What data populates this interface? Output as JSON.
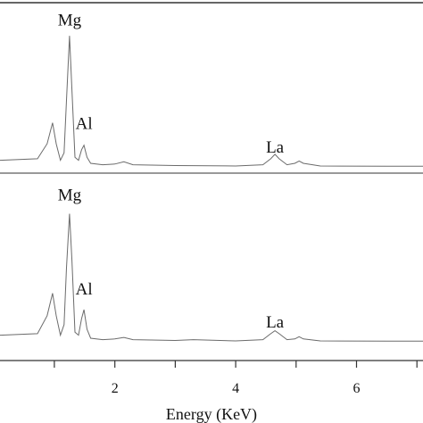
{
  "chart_data": [
    {
      "type": "line",
      "panel": "top",
      "xlabel": "Energy (KeV)",
      "xlim": [
        0.1,
        7.1
      ],
      "ylim": [
        0,
        1
      ],
      "annotations": [
        {
          "text": "Mg",
          "x": 1.25,
          "y": 0.95
        },
        {
          "text": "Al",
          "x": 1.49,
          "y": 0.26
        },
        {
          "text": "La",
          "x": 4.65,
          "y": 0.1
        }
      ],
      "series": [
        {
          "points": [
            [
              0.1,
              0.05
            ],
            [
              0.72,
              0.06
            ],
            [
              0.88,
              0.16
            ],
            [
              0.97,
              0.3
            ],
            [
              1.03,
              0.16
            ],
            [
              1.1,
              0.05
            ],
            [
              1.16,
              0.1
            ],
            [
              1.2,
              0.45
            ],
            [
              1.25,
              0.88
            ],
            [
              1.29,
              0.52
            ],
            [
              1.34,
              0.07
            ],
            [
              1.4,
              0.05
            ],
            [
              1.45,
              0.12
            ],
            [
              1.49,
              0.15
            ],
            [
              1.54,
              0.07
            ],
            [
              1.6,
              0.03
            ],
            [
              1.8,
              0.02
            ],
            [
              2.0,
              0.025
            ],
            [
              2.15,
              0.04
            ],
            [
              2.3,
              0.02
            ],
            [
              3.0,
              0.015
            ],
            [
              4.0,
              0.012
            ],
            [
              4.45,
              0.02
            ],
            [
              4.58,
              0.06
            ],
            [
              4.65,
              0.09
            ],
            [
              4.72,
              0.06
            ],
            [
              4.85,
              0.02
            ],
            [
              4.98,
              0.03
            ],
            [
              5.05,
              0.045
            ],
            [
              5.12,
              0.03
            ],
            [
              5.4,
              0.012
            ],
            [
              6.5,
              0.01
            ],
            [
              7.1,
              0.01
            ]
          ]
        }
      ]
    },
    {
      "type": "line",
      "panel": "bottom",
      "xlabel": "Energy (KeV)",
      "xlim": [
        0.1,
        7.1
      ],
      "ylim": [
        0,
        1
      ],
      "xticks": [
        2,
        4,
        6
      ],
      "annotations": [
        {
          "text": "Mg",
          "x": 1.25,
          "y": 0.95
        },
        {
          "text": "Al",
          "x": 1.49,
          "y": 0.32
        },
        {
          "text": "La",
          "x": 4.65,
          "y": 0.1
        }
      ],
      "series": [
        {
          "points": [
            [
              0.1,
              0.05
            ],
            [
              0.72,
              0.06
            ],
            [
              0.88,
              0.18
            ],
            [
              0.97,
              0.33
            ],
            [
              1.03,
              0.18
            ],
            [
              1.1,
              0.05
            ],
            [
              1.16,
              0.12
            ],
            [
              1.2,
              0.5
            ],
            [
              1.25,
              0.86
            ],
            [
              1.29,
              0.55
            ],
            [
              1.34,
              0.07
            ],
            [
              1.4,
              0.05
            ],
            [
              1.45,
              0.16
            ],
            [
              1.49,
              0.22
            ],
            [
              1.54,
              0.09
            ],
            [
              1.6,
              0.03
            ],
            [
              1.8,
              0.02
            ],
            [
              2.0,
              0.025
            ],
            [
              2.15,
              0.035
            ],
            [
              2.3,
              0.02
            ],
            [
              3.0,
              0.015
            ],
            [
              3.3,
              0.02
            ],
            [
              4.0,
              0.012
            ],
            [
              4.45,
              0.02
            ],
            [
              4.58,
              0.06
            ],
            [
              4.65,
              0.08
            ],
            [
              4.72,
              0.06
            ],
            [
              4.85,
              0.02
            ],
            [
              4.98,
              0.025
            ],
            [
              5.05,
              0.04
            ],
            [
              5.12,
              0.025
            ],
            [
              5.4,
              0.012
            ],
            [
              6.5,
              0.01
            ],
            [
              7.1,
              0.01
            ]
          ]
        }
      ]
    }
  ]
}
